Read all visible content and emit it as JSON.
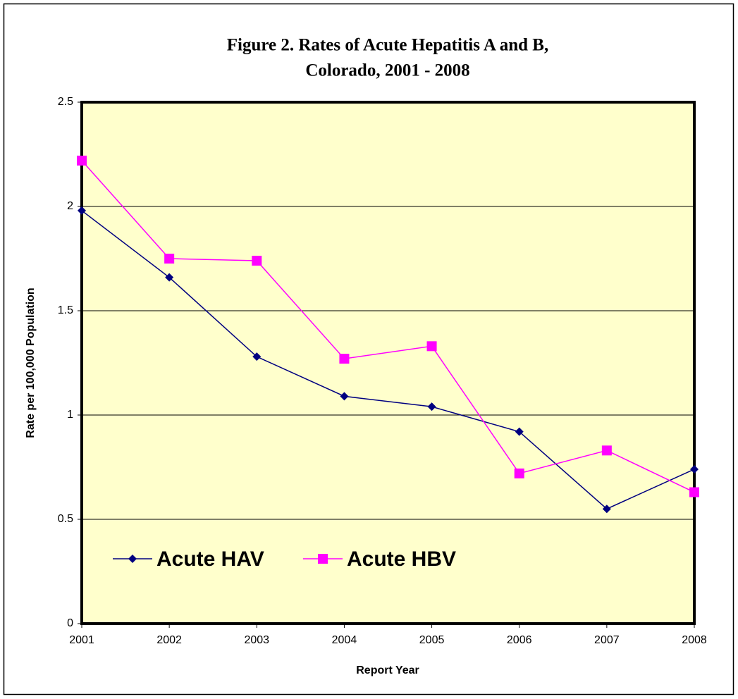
{
  "chart_data": {
    "type": "line",
    "title": [
      "Figure 2.  Rates of Acute Hepatitis A and B,",
      "Colorado, 2001 - 2008"
    ],
    "x_label": "Report Year",
    "y_label": "Rate per 100,000 Population",
    "categories": [
      "2001",
      "2002",
      "2003",
      "2004",
      "2005",
      "2006",
      "2007",
      "2008"
    ],
    "series": [
      {
        "name": "Acute HAV",
        "color": "#000080",
        "marker": "diamond",
        "values": [
          1.98,
          1.66,
          1.28,
          1.09,
          1.04,
          0.92,
          0.55,
          0.74
        ]
      },
      {
        "name": "Acute HBV",
        "color": "#ff00ff",
        "marker": "square",
        "values": [
          2.22,
          1.75,
          1.74,
          1.27,
          1.33,
          0.72,
          0.83,
          0.63
        ]
      }
    ],
    "ylim": [
      0,
      2.5
    ],
    "yticks": [
      0,
      0.5,
      1,
      1.5,
      2,
      2.5
    ],
    "grid": true,
    "legend": "lower left",
    "plot_background": "#ffffcc"
  }
}
